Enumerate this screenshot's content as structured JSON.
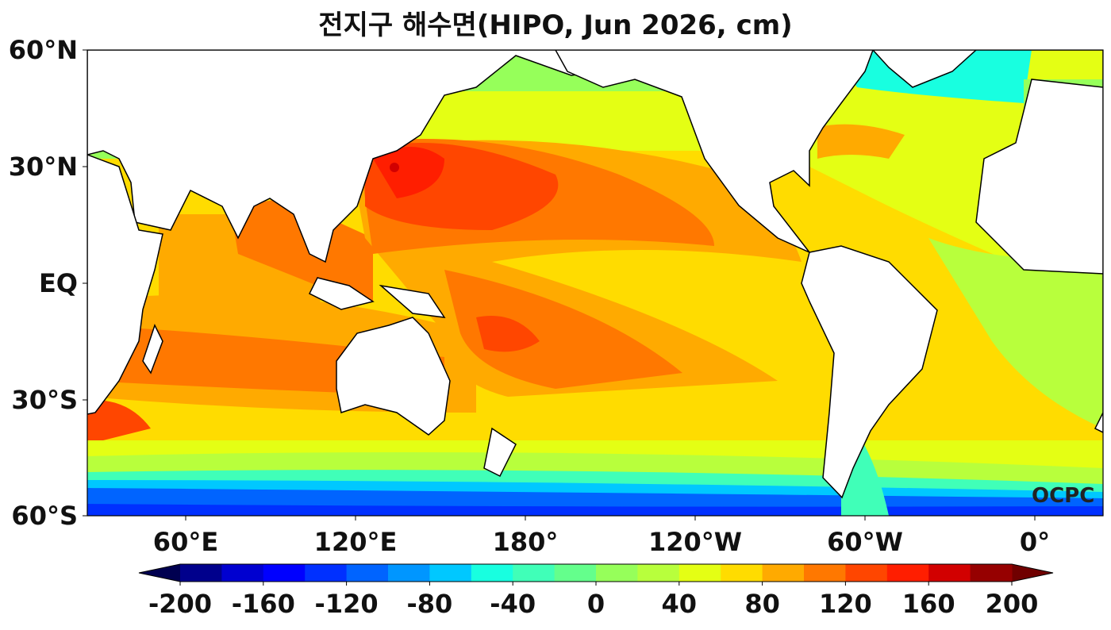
{
  "title": "전지구 해수면(HIPO, Jun 2026, cm)",
  "map": {
    "type": "filled-contour map",
    "variable": "sea level",
    "units": "cm",
    "lat_labels": [
      "60°N",
      "30°N",
      "EQ",
      "30°S",
      "60°S"
    ],
    "lon_labels": [
      "60°E",
      "120°E",
      "180°",
      "120°W",
      "60°W",
      "0°"
    ],
    "watermark": "OCPC"
  },
  "colorbar": {
    "min": -200,
    "max": 200,
    "step": 20,
    "extend": "both",
    "tick_labels": [
      "-200",
      "-160",
      "-120",
      "-80",
      "-40",
      "0",
      "40",
      "80",
      "120",
      "160",
      "200"
    ],
    "colors": [
      "#00008c",
      "#0000d0",
      "#0000ff",
      "#0030ff",
      "#0064ff",
      "#0096ff",
      "#00c8ff",
      "#18ffe0",
      "#40ffb8",
      "#64ff8c",
      "#96ff5a",
      "#b8ff3c",
      "#e4ff14",
      "#ffdc00",
      "#ffaa00",
      "#ff7800",
      "#ff4600",
      "#ff1e00",
      "#d20000",
      "#960000"
    ],
    "under_color": "#000050",
    "over_color": "#700000"
  }
}
